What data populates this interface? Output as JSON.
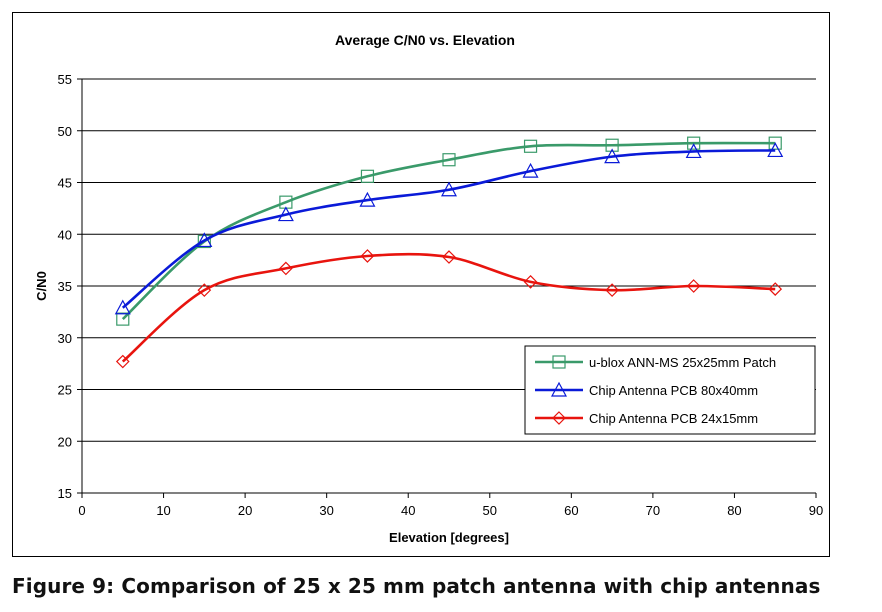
{
  "chart_data": {
    "type": "line",
    "title": "Average C/N0 vs. Elevation",
    "xlabel": "Elevation [degrees]",
    "ylabel": "C/N0",
    "xlim": [
      0,
      90
    ],
    "ylim": [
      15,
      55
    ],
    "xticks": [
      0,
      10,
      20,
      30,
      40,
      50,
      60,
      70,
      80,
      90
    ],
    "yticks": [
      15,
      20,
      25,
      30,
      35,
      40,
      45,
      50,
      55
    ],
    "grid": "horizontal",
    "legend_position": "lower-right",
    "series": [
      {
        "name": "u-blox ANN-MS 25x25mm Patch",
        "color": "#3a9a6a",
        "marker": "square",
        "x": [
          5,
          15,
          25,
          35,
          45,
          55,
          65,
          75,
          85
        ],
        "values": [
          31.8,
          39.3,
          43.1,
          45.6,
          47.2,
          48.5,
          48.6,
          48.8,
          48.8
        ]
      },
      {
        "name": "Chip Antenna PCB 80x40mm",
        "color": "#0a1ad8",
        "marker": "triangle",
        "x": [
          5,
          15,
          25,
          35,
          45,
          55,
          65,
          75,
          85
        ],
        "values": [
          32.9,
          39.4,
          41.9,
          43.3,
          44.3,
          46.1,
          47.5,
          48.0,
          48.1
        ]
      },
      {
        "name": "Chip Antenna PCB  24x15mm",
        "color": "#e8140e",
        "marker": "diamond",
        "x": [
          5,
          15,
          25,
          35,
          45,
          55,
          65,
          75,
          85
        ],
        "values": [
          27.7,
          34.6,
          36.7,
          37.9,
          37.8,
          35.4,
          34.6,
          35.0,
          34.7
        ]
      }
    ]
  },
  "caption": "Figure 9: Comparison of 25 x 25 mm patch antenna with chip antennas"
}
